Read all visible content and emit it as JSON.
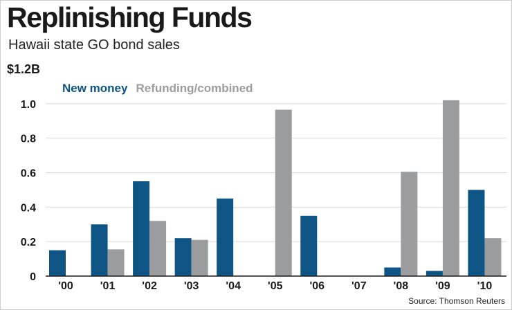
{
  "chart_data": {
    "type": "bar",
    "title": "Replinishing Funds",
    "subtitle": "Hawaii state GO bond sales",
    "source": "Source: Thomson Reuters",
    "ylabel": "",
    "xlabel": "",
    "y_unit_label": "$1.2B",
    "ylim": [
      0,
      1.2
    ],
    "y_ticks": [
      0,
      0.2,
      0.4,
      0.6,
      0.8,
      1.0
    ],
    "y_tick_labels": [
      "0",
      "0.2",
      "0.4",
      "0.6",
      "0.8",
      "1.0"
    ],
    "grid": true,
    "legend_position": "top-left",
    "categories": [
      "'00",
      "'01",
      "'02",
      "'03",
      "'04",
      "'05",
      "'06",
      "'07",
      "'08",
      "'09",
      "'10"
    ],
    "series": [
      {
        "name": "New money",
        "color": "#0e5585",
        "values": [
          0.15,
          0.3,
          0.55,
          0.22,
          0.45,
          0,
          0.35,
          0,
          0.05,
          0.03,
          0.5
        ]
      },
      {
        "name": "Refunding/combined",
        "color": "#9b9c9e",
        "values": [
          0,
          0.155,
          0.32,
          0.21,
          0,
          0.965,
          0,
          0,
          0.605,
          1.02,
          0.22
        ]
      }
    ]
  }
}
